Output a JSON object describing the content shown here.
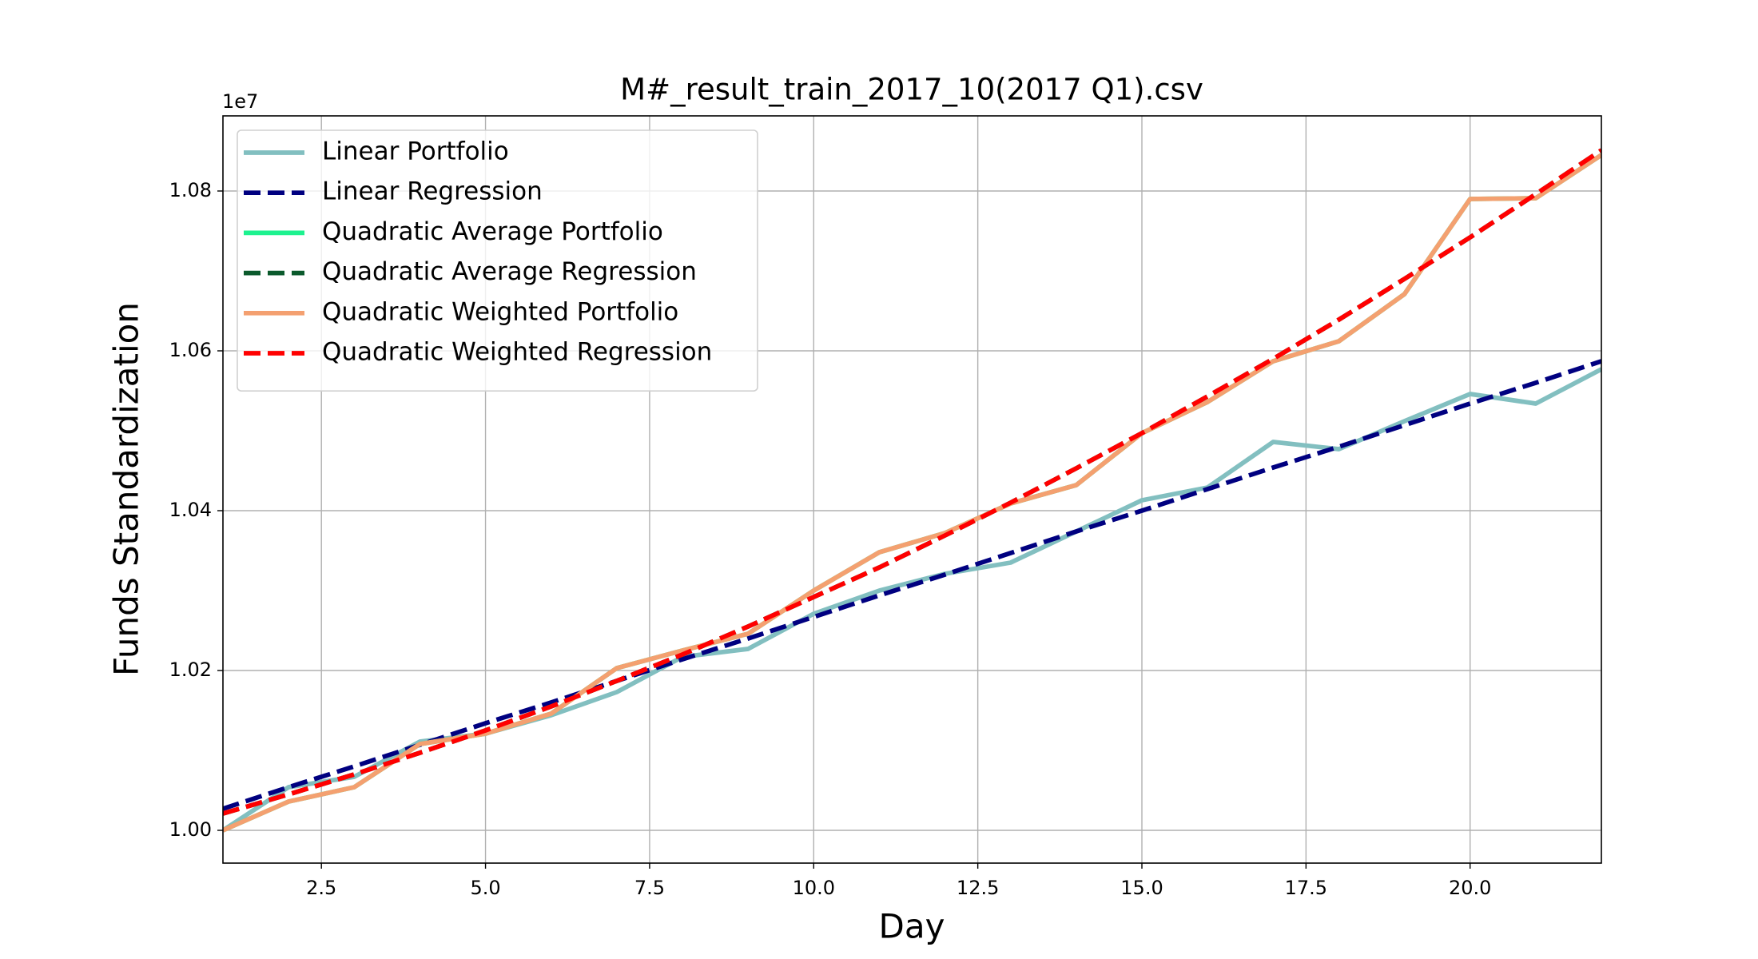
{
  "chart_data": {
    "type": "line",
    "title": "M#_result_train_2017_10(2017 Q1).csv",
    "x_label": "Day",
    "y_label": "Funds Standardization",
    "y_offset_label": "1e7",
    "x": [
      1,
      2,
      3,
      4,
      5,
      6,
      7,
      8,
      9,
      10,
      11,
      12,
      13,
      14,
      15,
      16,
      17,
      18,
      19,
      20,
      21,
      22
    ],
    "series": [
      {
        "name": "Linear Portfolio",
        "color": "#82bfc0",
        "dash": false,
        "values": [
          1.0,
          1.0054,
          1.0067,
          1.0111,
          1.0121,
          1.0144,
          1.0173,
          1.0217,
          1.0227,
          1.0271,
          1.03,
          1.0321,
          1.0335,
          1.0374,
          1.0413,
          1.0429,
          1.0486,
          1.0477,
          1.0512,
          1.0546,
          1.0534,
          1.0577
        ]
      },
      {
        "name": "Linear Regression",
        "color": "#000080",
        "dash": true,
        "values": [
          1.0027,
          1.0054,
          1.008,
          1.0107,
          1.0134,
          1.016,
          1.0187,
          1.0214,
          1.024,
          1.0267,
          1.0294,
          1.032,
          1.0347,
          1.0374,
          1.04,
          1.0427,
          1.0454,
          1.048,
          1.0507,
          1.0534,
          1.056,
          1.0587
        ]
      },
      {
        "name": "Quadratic Average Portfolio",
        "color": "#1df28f",
        "dash": false,
        "values": [
          1.0,
          1.0036,
          1.0054,
          1.0108,
          1.0121,
          1.0146,
          1.0203,
          1.0225,
          1.0246,
          1.03,
          1.0348,
          1.0372,
          1.0409,
          1.0432,
          1.0497,
          1.0536,
          1.0587,
          1.0612,
          1.0671,
          1.079,
          1.0791,
          1.0845
        ]
      },
      {
        "name": "Quadratic Average Regression",
        "color": "#0b5a2c",
        "dash": true,
        "values": [
          1.0021,
          1.0045,
          1.007,
          1.0097,
          1.0125,
          1.0155,
          1.0187,
          1.022,
          1.0255,
          1.0292,
          1.0329,
          1.0369,
          1.041,
          1.0453,
          1.0497,
          1.0543,
          1.059,
          1.0639,
          1.069,
          1.0742,
          1.0796,
          1.0851
        ]
      },
      {
        "name": "Quadratic Weighted Portfolio",
        "color": "#f4a070",
        "dash": false,
        "values": [
          1.0,
          1.0036,
          1.0054,
          1.0108,
          1.0121,
          1.0146,
          1.0203,
          1.0225,
          1.0246,
          1.03,
          1.0348,
          1.0372,
          1.0409,
          1.0432,
          1.0497,
          1.0536,
          1.0587,
          1.0612,
          1.0671,
          1.079,
          1.0791,
          1.0845
        ]
      },
      {
        "name": "Quadratic Weighted Regression",
        "color": "#ff0000",
        "dash": true,
        "values": [
          1.0021,
          1.0045,
          1.007,
          1.0097,
          1.0125,
          1.0155,
          1.0187,
          1.022,
          1.0255,
          1.0292,
          1.0329,
          1.0369,
          1.041,
          1.0453,
          1.0497,
          1.0543,
          1.059,
          1.0639,
          1.069,
          1.0742,
          1.0796,
          1.0851
        ]
      }
    ],
    "xlim": [
      1,
      22
    ],
    "xticks": [
      2.5,
      {
        "value": 5,
        "label": "5.0"
      },
      7.5,
      {
        "value": 10,
        "label": "10.0"
      },
      12.5,
      {
        "value": 15,
        "label": "15.0"
      },
      17.5,
      {
        "value": 20,
        "label": "20.0"
      }
    ],
    "ylim": [
      0.9959,
      1.0894
    ],
    "yticks": [
      {
        "value": 1,
        "label": "1.00"
      },
      {
        "value": 1.02,
        "label": "1.02"
      },
      {
        "value": 1.04,
        "label": "1.04"
      },
      {
        "value": 1.06,
        "label": "1.06"
      },
      {
        "value": 1.08,
        "label": "1.08"
      }
    ],
    "grid": true,
    "legend": "upper left"
  }
}
